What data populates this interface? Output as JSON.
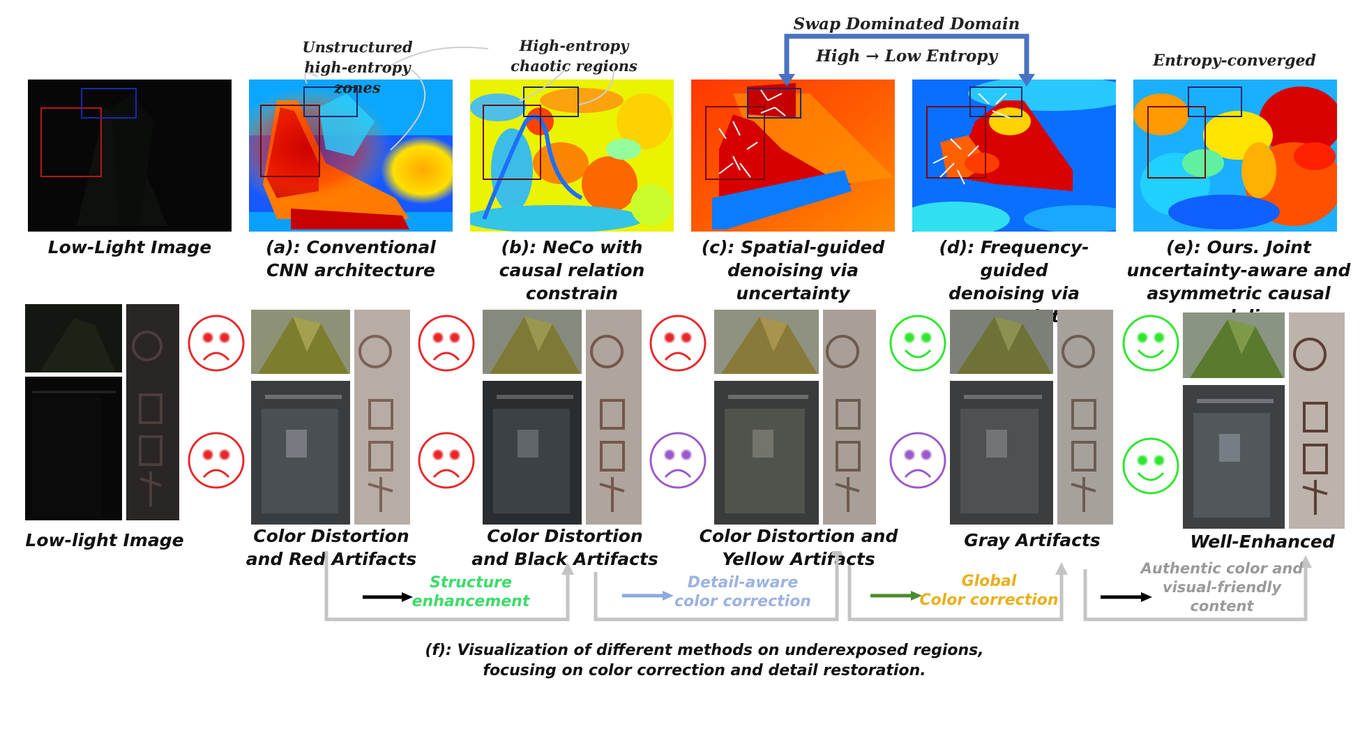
{
  "annotations": {
    "unstructured": "Unstructured high-entropy zones",
    "chaotic": "High-entropy chaotic regions",
    "swap": "Swap Dominated Domain",
    "high_low": "High → Low Entropy",
    "converged": "Entropy-converged"
  },
  "top_captions": {
    "lowlight": "Low-Light Image",
    "a": "(a): Conventional\nCNN architecture",
    "b": "(b): NeCo with\ncausal relation\nconstrain",
    "c": "(c): Spatial-guided\ndenoising via\nuncertainty",
    "d": "(d): Frequency-guided\ndenoising via\nuncertainty",
    "e": "(e): Ours. Joint\nuncertainty-aware and\nasymmetric causal modeling"
  },
  "bottom_captions": {
    "lowlight": "Low-light Image",
    "a": "Color Distortion\nand Red Artifacts",
    "b": "Color Distortion\nand Black Artifacts",
    "c": "Color Distortion and\nYellow Artifacts",
    "d": "Gray Artifacts",
    "e": "Well-Enhanced"
  },
  "transitions": [
    {
      "label": "Structure\nenhancement",
      "color": "#3ddc6a",
      "arrow_color": "#000000"
    },
    {
      "label": "Detail-aware\ncolor correction",
      "color": "#9bb3e0",
      "arrow_color": "#8fa9dc"
    },
    {
      "label": "Global\nColor correction",
      "color": "#e8b01e",
      "arrow_color": "#4e8a2e"
    },
    {
      "label": "Authentic color and\nvisual-friendly\ncontent",
      "color": "#9a9a9a",
      "arrow_color": "#000000"
    }
  ],
  "bottom_caption_f": "(f): Visualization of different methods on underexposed regions,\nfocusing on color correction and detail restoration.",
  "faces": {
    "a_top": "sad",
    "a_bottom": "sad",
    "b_top": "sad",
    "b_bottom": "sad",
    "c_top": "sad",
    "c_bottom": "sad",
    "d_top": "happy",
    "d_bottom": "sad",
    "e_top": "happy",
    "e_bottom": "happy"
  },
  "colors": {
    "sad_red": "#e8282b",
    "sad_purple": "#9b59c9",
    "happy_green": "#2ee62e",
    "swap_arrow": "#4a72c0",
    "flow_gray": "#c4c4c4",
    "box_red": "#d42020",
    "box_blue": "#1a2aa8"
  }
}
